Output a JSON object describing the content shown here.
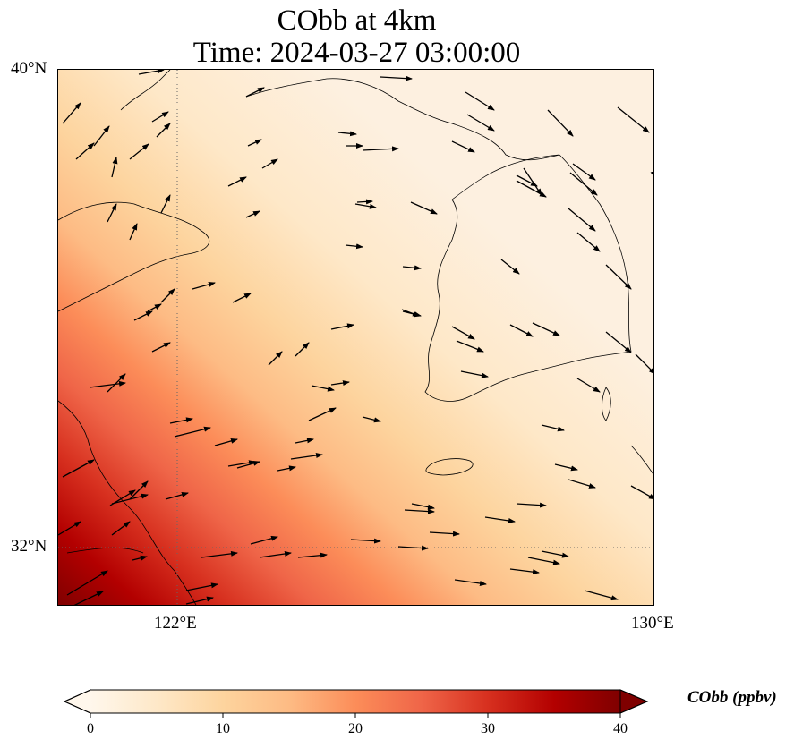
{
  "title": {
    "line1": "CObb at 4km",
    "line2": "Time: 2024-03-27 03:00:00"
  },
  "map": {
    "lon_range": [
      120.4,
      130
    ],
    "lat_range": [
      31,
      40
    ],
    "lat_ticks": [
      {
        "value": 40,
        "label": "40°N"
      },
      {
        "value": 32,
        "label": "32°N"
      }
    ],
    "lon_ticks": [
      {
        "value": 122,
        "label": "122°E"
      },
      {
        "value": 130,
        "label": "130°E"
      }
    ],
    "gridline_style": "dotted",
    "variable": "CObb",
    "units": "ppbv",
    "field_description": "high concentration (30-40 ppbv) in southwest corner near Yangtze delta, decreasing northeastward to near 0"
  },
  "colorbar": {
    "label": "CObb (ppbv)",
    "min": 0,
    "max": 40,
    "ticks": [
      {
        "value": 0,
        "label": "0"
      },
      {
        "value": 10,
        "label": "10"
      },
      {
        "value": 20,
        "label": "20"
      },
      {
        "value": 30,
        "label": "30"
      },
      {
        "value": 40,
        "label": "40"
      }
    ],
    "colormap": "OrRd",
    "extend": "both",
    "colors": [
      "#fff7ec",
      "#fee8c8",
      "#fdd49e",
      "#fdbb84",
      "#fc8d59",
      "#ef6548",
      "#d7301f",
      "#b30000",
      "#7f0000"
    ]
  }
}
